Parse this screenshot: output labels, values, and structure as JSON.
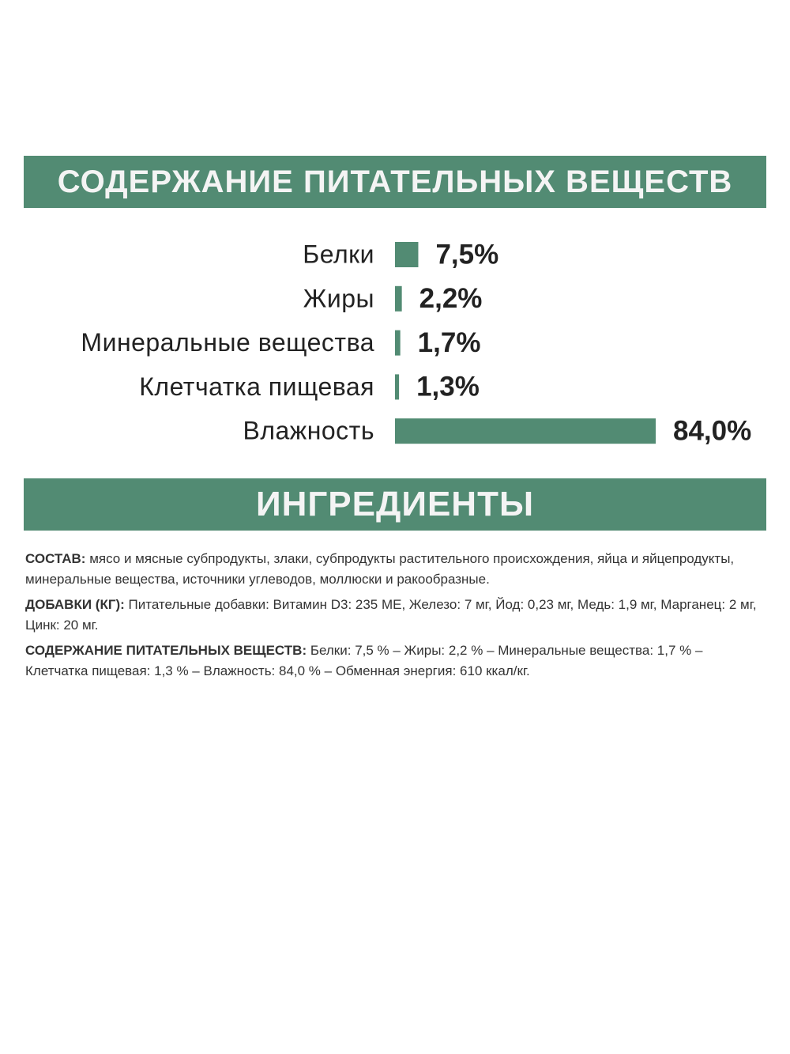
{
  "chart_data": {
    "type": "bar",
    "orientation": "horizontal",
    "title": "СОДЕРЖАНИЕ ПИТАТЕЛЬНЫХ ВЕЩЕСТВ",
    "categories": [
      "Белки",
      "Жиры",
      "Минеральные вещества",
      "Клетчатка пищевая",
      "Влажность"
    ],
    "values": [
      7.5,
      2.2,
      1.7,
      1.3,
      84.0
    ],
    "value_labels": [
      "7,5%",
      "2,2%",
      "1,7%",
      "1,3%",
      "84,0%"
    ],
    "color": "#528b73"
  },
  "ingredients": {
    "title": "ИНГРЕДИЕНТЫ",
    "items": [
      {
        "label": "СОСТАВ:",
        "text": "мясо и мясные субпродукты, злаки, субпродукты растительного происхождения, яйца и яйцепродукты, минеральные вещества, источники углеводов, моллюски и ракообразные."
      },
      {
        "label": "ДОБАВКИ (КГ):",
        "text": "Питательные добавки: Витамин D3: 235 МЕ, Железо: 7 мг, Йод: 0,23 мг, Медь: 1,9 мг, Марганец: 2 мг, Цинк: 20 мг."
      },
      {
        "label": "СОДЕРЖАНИЕ ПИТАТЕЛЬНЫХ ВЕЩЕСТВ:",
        "text": "Белки: 7,5 % – Жиры: 2,2 % – Минеральные вещества: 1,7 % – Клетчатка пищевая: 1,3 % – Влажность: 84,0 % – Обменная энергия: 610 ккал/кг."
      }
    ]
  }
}
